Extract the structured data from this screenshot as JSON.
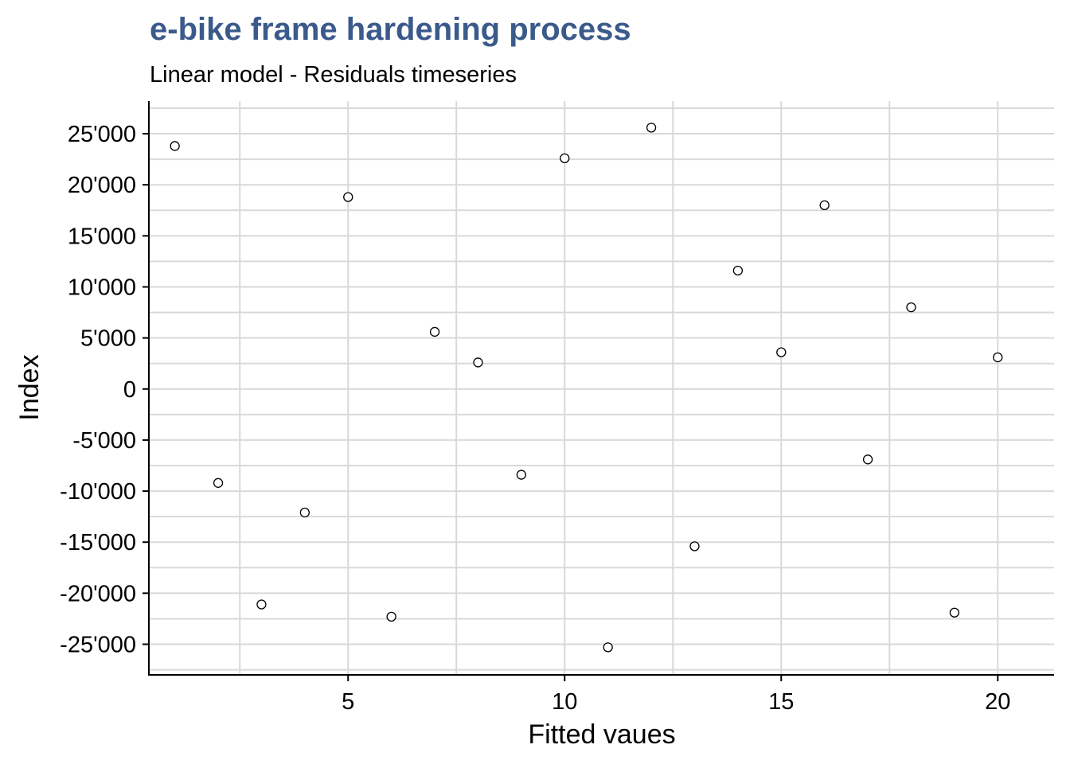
{
  "chart_data": {
    "type": "scatter",
    "title": "e-bike frame hardening process",
    "subtitle": "Linear model - Residuals timeseries",
    "xlabel": "Fitted vaues",
    "ylabel": "Index",
    "xlim": [
      0.4,
      21.3
    ],
    "ylim": [
      -28000,
      28200
    ],
    "x_ticks": [
      5,
      10,
      15,
      20
    ],
    "x_tick_labels": [
      "5",
      "10",
      "15",
      "20"
    ],
    "x_minor_ticks": [
      2.5,
      7.5,
      12.5,
      17.5
    ],
    "y_ticks": [
      -25000,
      -20000,
      -15000,
      -10000,
      -5000,
      0,
      5000,
      10000,
      15000,
      20000,
      25000
    ],
    "y_tick_labels": [
      "-25'000",
      "-20'000",
      "-15'000",
      "-10'000",
      "-5'000",
      "0",
      "5'000",
      "10'000",
      "15'000",
      "20'000",
      "25'000"
    ],
    "y_minor_ticks": [
      -27500,
      -22500,
      -17500,
      -12500,
      -7500,
      -2500,
      2500,
      7500,
      12500,
      17500,
      22500,
      27500
    ],
    "grid": true,
    "legend": "none",
    "colors": {
      "title": "#3b5a8c",
      "text": "#000000",
      "grid": "#d9d9d9",
      "axis": "#000000",
      "point_stroke": "#000000",
      "point_fill": "#ffffff"
    },
    "points": [
      {
        "x": 1,
        "y": 23800
      },
      {
        "x": 2,
        "y": -9200
      },
      {
        "x": 3,
        "y": -21100
      },
      {
        "x": 4,
        "y": -12100
      },
      {
        "x": 5,
        "y": 18800
      },
      {
        "x": 6,
        "y": -22300
      },
      {
        "x": 7,
        "y": 5600
      },
      {
        "x": 8,
        "y": 2600
      },
      {
        "x": 9,
        "y": -8400
      },
      {
        "x": 10,
        "y": 22600
      },
      {
        "x": 11,
        "y": -25300
      },
      {
        "x": 12,
        "y": 25600
      },
      {
        "x": 13,
        "y": -15400
      },
      {
        "x": 14,
        "y": 11600
      },
      {
        "x": 15,
        "y": 3600
      },
      {
        "x": 16,
        "y": 18000
      },
      {
        "x": 17,
        "y": -6900
      },
      {
        "x": 18,
        "y": 8000
      },
      {
        "x": 19,
        "y": -21900
      },
      {
        "x": 20,
        "y": 3100
      }
    ]
  }
}
